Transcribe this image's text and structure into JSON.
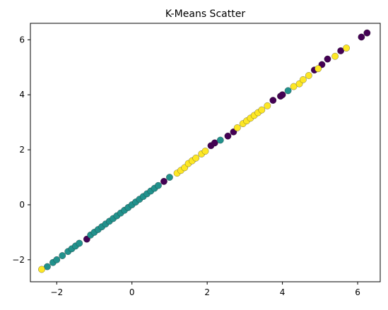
{
  "chart_data": {
    "type": "scatter",
    "title": "K-Means Scatter",
    "xlabel": "",
    "ylabel": "",
    "xlim": [
      -2.7,
      6.6
    ],
    "ylim": [
      -2.8,
      6.6
    ],
    "x_ticks": [
      -2,
      0,
      2,
      4,
      6
    ],
    "y_ticks": [
      -2,
      0,
      2,
      4,
      6
    ],
    "x_tick_labels": [
      "−2",
      "0",
      "2",
      "4",
      "6"
    ],
    "y_tick_labels": [
      "−2",
      "0",
      "2",
      "4",
      "6"
    ],
    "grid": false,
    "legend": "none",
    "cluster_colors": {
      "0": "#440154",
      "1": "#21918c",
      "2": "#fde725"
    },
    "series": [
      {
        "cluster": 0,
        "color": "#440154",
        "points": [
          [
            -1.2,
            -1.25
          ],
          [
            0.85,
            0.85
          ],
          [
            2.1,
            2.15
          ],
          [
            2.2,
            2.25
          ],
          [
            2.55,
            2.5
          ],
          [
            2.7,
            2.65
          ],
          [
            3.75,
            3.8
          ],
          [
            3.95,
            3.95
          ],
          [
            4.0,
            4.0
          ],
          [
            4.85,
            4.9
          ],
          [
            5.05,
            5.1
          ],
          [
            5.2,
            5.3
          ],
          [
            5.55,
            5.6
          ],
          [
            6.1,
            6.1
          ],
          [
            6.25,
            6.25
          ]
        ]
      },
      {
        "cluster": 1,
        "color": "#21918c",
        "points": [
          [
            -2.25,
            -2.25
          ],
          [
            -2.1,
            -2.1
          ],
          [
            -2.0,
            -2.0
          ],
          [
            -1.85,
            -1.85
          ],
          [
            -1.7,
            -1.7
          ],
          [
            -1.6,
            -1.6
          ],
          [
            -1.5,
            -1.5
          ],
          [
            -1.4,
            -1.4
          ],
          [
            -1.1,
            -1.1
          ],
          [
            -1.0,
            -1.0
          ],
          [
            -0.9,
            -0.9
          ],
          [
            -0.8,
            -0.8
          ],
          [
            -0.7,
            -0.7
          ],
          [
            -0.6,
            -0.6
          ],
          [
            -0.5,
            -0.5
          ],
          [
            -0.4,
            -0.4
          ],
          [
            -0.3,
            -0.3
          ],
          [
            -0.2,
            -0.2
          ],
          [
            -0.1,
            -0.1
          ],
          [
            0.0,
            0.0
          ],
          [
            0.1,
            0.1
          ],
          [
            0.2,
            0.2
          ],
          [
            0.3,
            0.3
          ],
          [
            0.4,
            0.4
          ],
          [
            0.5,
            0.5
          ],
          [
            0.6,
            0.6
          ],
          [
            0.7,
            0.7
          ],
          [
            1.0,
            1.0
          ],
          [
            2.35,
            2.35
          ],
          [
            4.15,
            4.15
          ]
        ]
      },
      {
        "cluster": 2,
        "color": "#fde725",
        "points": [
          [
            -2.4,
            -2.35
          ],
          [
            1.2,
            1.15
          ],
          [
            1.3,
            1.25
          ],
          [
            1.4,
            1.35
          ],
          [
            1.5,
            1.5
          ],
          [
            1.6,
            1.6
          ],
          [
            1.7,
            1.7
          ],
          [
            1.85,
            1.85
          ],
          [
            1.95,
            1.95
          ],
          [
            2.8,
            2.8
          ],
          [
            2.95,
            2.95
          ],
          [
            3.05,
            3.05
          ],
          [
            3.15,
            3.15
          ],
          [
            3.25,
            3.25
          ],
          [
            3.35,
            3.35
          ],
          [
            3.45,
            3.45
          ],
          [
            3.6,
            3.6
          ],
          [
            4.3,
            4.3
          ],
          [
            4.45,
            4.4
          ],
          [
            4.55,
            4.55
          ],
          [
            4.7,
            4.7
          ],
          [
            4.95,
            4.95
          ],
          [
            5.4,
            5.4
          ],
          [
            5.7,
            5.7
          ]
        ]
      }
    ]
  }
}
